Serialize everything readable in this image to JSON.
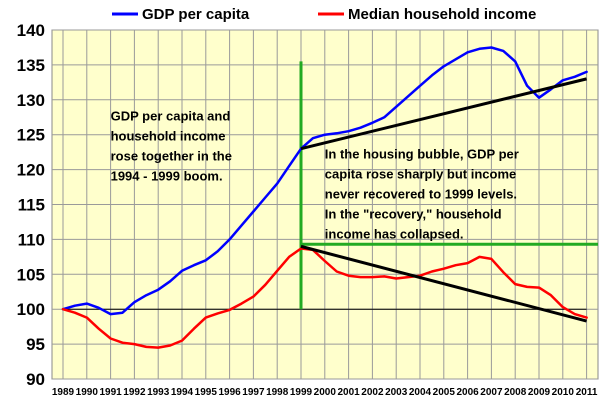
{
  "chart_data": {
    "type": "line",
    "title": "",
    "xlabel": "",
    "ylabel": "",
    "ylim": [
      90,
      140
    ],
    "yticks": [
      90,
      95,
      100,
      105,
      110,
      115,
      120,
      125,
      130,
      135,
      140
    ],
    "x_tick_labels": [
      "1989",
      "1990",
      "1991",
      "1992",
      "1993",
      "1994",
      "1995",
      "1996",
      "1997",
      "1998",
      "1999",
      "2000",
      "2001",
      "2002",
      "2003",
      "2004",
      "2005",
      "2006",
      "2007",
      "2008",
      "2009",
      "2010",
      "2011"
    ],
    "grid": true,
    "plot_background": "#ffffcc",
    "legend": {
      "placement": "top",
      "entries": [
        "GDP per capita",
        "Median household income"
      ]
    },
    "series": [
      {
        "name": "GDP per capita",
        "color": "#0000ff",
        "points": [
          [
            1989.0,
            100.0
          ],
          [
            1989.5,
            100.5
          ],
          [
            1990.0,
            100.8
          ],
          [
            1990.5,
            100.2
          ],
          [
            1991.0,
            99.3
          ],
          [
            1991.5,
            99.5
          ],
          [
            1992.0,
            101.0
          ],
          [
            1992.5,
            102.0
          ],
          [
            1993.0,
            102.8
          ],
          [
            1993.5,
            104.0
          ],
          [
            1994.0,
            105.5
          ],
          [
            1994.5,
            106.3
          ],
          [
            1995.0,
            107.0
          ],
          [
            1995.5,
            108.3
          ],
          [
            1996.0,
            110.0
          ],
          [
            1996.5,
            112.0
          ],
          [
            1997.0,
            114.0
          ],
          [
            1997.5,
            116.0
          ],
          [
            1998.0,
            118.0
          ],
          [
            1998.5,
            120.5
          ],
          [
            1999.0,
            123.0
          ],
          [
            1999.5,
            124.5
          ],
          [
            2000.0,
            125.0
          ],
          [
            2000.5,
            125.2
          ],
          [
            2001.0,
            125.5
          ],
          [
            2001.5,
            126.0
          ],
          [
            2002.0,
            126.7
          ],
          [
            2002.5,
            127.5
          ],
          [
            2003.0,
            129.0
          ],
          [
            2003.5,
            130.5
          ],
          [
            2004.0,
            132.0
          ],
          [
            2004.5,
            133.5
          ],
          [
            2005.0,
            134.8
          ],
          [
            2005.5,
            135.8
          ],
          [
            2006.0,
            136.8
          ],
          [
            2006.5,
            137.3
          ],
          [
            2007.0,
            137.5
          ],
          [
            2007.5,
            137.0
          ],
          [
            2008.0,
            135.5
          ],
          [
            2008.5,
            132.0
          ],
          [
            2009.0,
            130.3
          ],
          [
            2009.5,
            131.5
          ],
          [
            2010.0,
            132.8
          ],
          [
            2010.5,
            133.3
          ],
          [
            2011.0,
            134.0
          ]
        ]
      },
      {
        "name": "Median household income",
        "color": "#ff0000",
        "points": [
          [
            1989.0,
            100.0
          ],
          [
            1989.5,
            99.5
          ],
          [
            1990.0,
            98.8
          ],
          [
            1990.5,
            97.2
          ],
          [
            1991.0,
            95.8
          ],
          [
            1991.5,
            95.2
          ],
          [
            1992.0,
            95.0
          ],
          [
            1992.5,
            94.6
          ],
          [
            1993.0,
            94.5
          ],
          [
            1993.5,
            94.8
          ],
          [
            1994.0,
            95.5
          ],
          [
            1994.5,
            97.2
          ],
          [
            1995.0,
            98.8
          ],
          [
            1995.5,
            99.4
          ],
          [
            1996.0,
            99.9
          ],
          [
            1996.5,
            100.8
          ],
          [
            1997.0,
            101.8
          ],
          [
            1997.5,
            103.5
          ],
          [
            1998.0,
            105.5
          ],
          [
            1998.5,
            107.5
          ],
          [
            1999.0,
            108.7
          ],
          [
            1999.5,
            108.5
          ],
          [
            2000.0,
            106.9
          ],
          [
            2000.5,
            105.4
          ],
          [
            2001.0,
            104.8
          ],
          [
            2001.5,
            104.6
          ],
          [
            2002.0,
            104.6
          ],
          [
            2002.5,
            104.7
          ],
          [
            2003.0,
            104.4
          ],
          [
            2003.5,
            104.6
          ],
          [
            2004.0,
            104.8
          ],
          [
            2004.5,
            105.4
          ],
          [
            2005.0,
            105.8
          ],
          [
            2005.5,
            106.3
          ],
          [
            2006.0,
            106.6
          ],
          [
            2006.5,
            107.5
          ],
          [
            2007.0,
            107.2
          ],
          [
            2007.5,
            105.3
          ],
          [
            2008.0,
            103.6
          ],
          [
            2008.5,
            103.2
          ],
          [
            2009.0,
            103.1
          ],
          [
            2009.5,
            102.0
          ],
          [
            2010.0,
            100.3
          ],
          [
            2010.5,
            99.3
          ],
          [
            2011.0,
            98.8
          ]
        ]
      }
    ],
    "reference_lines": [
      {
        "kind": "horizontal",
        "y": 100,
        "x_from": 1989,
        "x_to": 2011,
        "color": "#000000",
        "width": 1
      },
      {
        "kind": "vertical",
        "x": 1999,
        "y_from": 100,
        "y_to": 135.5,
        "color": "#22aa22",
        "width": 3
      },
      {
        "kind": "horizontal",
        "y": 109.3,
        "x_from": 1999,
        "x_to": 2011.7,
        "color": "#22aa22",
        "width": 3
      },
      {
        "kind": "trend",
        "from": [
          1999,
          123.0
        ],
        "to": [
          2011,
          133.0
        ],
        "color": "#000000",
        "width": 3
      },
      {
        "kind": "trend",
        "from": [
          1999,
          109.0
        ],
        "to": [
          2011,
          98.3
        ],
        "color": "#000000",
        "width": 3
      }
    ],
    "annotations": [
      {
        "anchor": [
          1991.0,
          127.0
        ],
        "lines": [
          "GDP per capita and",
          "household income",
          "rose together in the",
          "1994 - 1999 boom."
        ]
      },
      {
        "anchor": [
          2000.0,
          121.6
        ],
        "lines": [
          "In the housing bubble, GDP per",
          "capita rose sharply but income",
          "never recovered to 1999 levels.",
          "In the \"recovery,\" household",
          "income has collapsed."
        ]
      }
    ]
  }
}
